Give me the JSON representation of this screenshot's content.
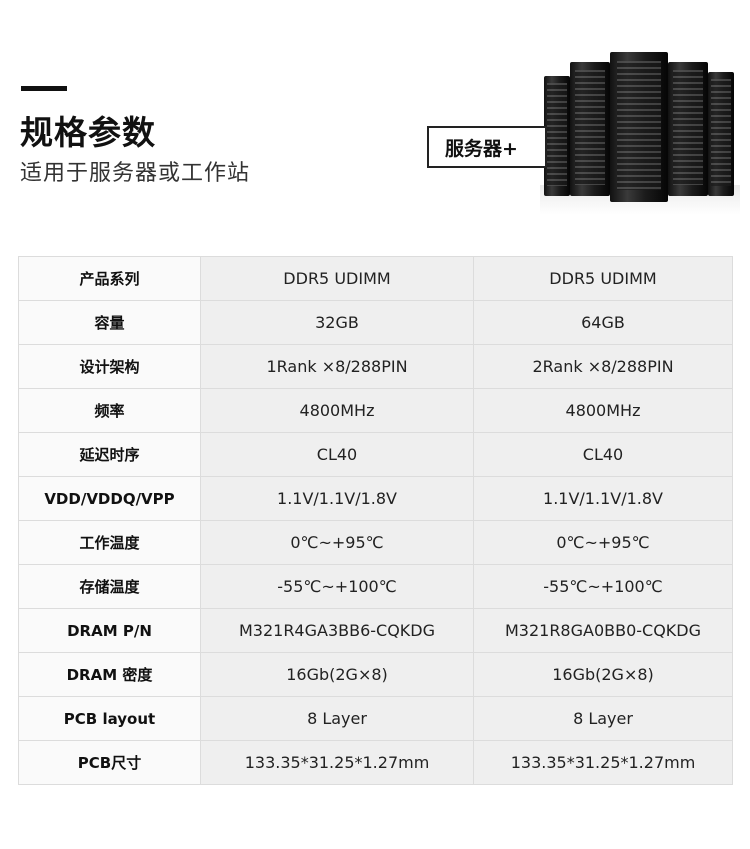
{
  "header": {
    "title": "规格参数",
    "subtitle": "适用于服务器或工作站",
    "tag": "服务器+"
  },
  "specs": [
    {
      "label": "产品系列",
      "a": "DDR5 UDIMM",
      "b": "DDR5 UDIMM"
    },
    {
      "label": "容量",
      "a": "32GB",
      "b": "64GB"
    },
    {
      "label": "设计架构",
      "a": "1Rank ×8/288PIN",
      "b": "2Rank ×8/288PIN"
    },
    {
      "label": "频率",
      "a": "4800MHz",
      "b": "4800MHz"
    },
    {
      "label": "延迟时序",
      "a": "CL40",
      "b": "CL40"
    },
    {
      "label": "VDD/VDDQ/VPP",
      "a": "1.1V/1.1V/1.8V",
      "b": "1.1V/1.1V/1.8V"
    },
    {
      "label": "工作温度",
      "a": "0℃~+95℃",
      "b": "0℃~+95℃"
    },
    {
      "label": "存储温度",
      "a": "-55℃~+100℃",
      "b": "-55℃~+100℃"
    },
    {
      "label": "DRAM P/N",
      "a": "M321R4GA3BB6-CQKDG",
      "b": "M321R8GA0BB0-CQKDG"
    },
    {
      "label": "DRAM 密度",
      "a": "16Gb(2G×8)",
      "b": "16Gb(2G×8)"
    },
    {
      "label": "PCB layout",
      "a": "8 Layer",
      "b": "8 Layer"
    },
    {
      "label": "PCB尺寸",
      "a": "133.35*31.25*1.27mm",
      "b": "133.35*31.25*1.27mm"
    }
  ]
}
